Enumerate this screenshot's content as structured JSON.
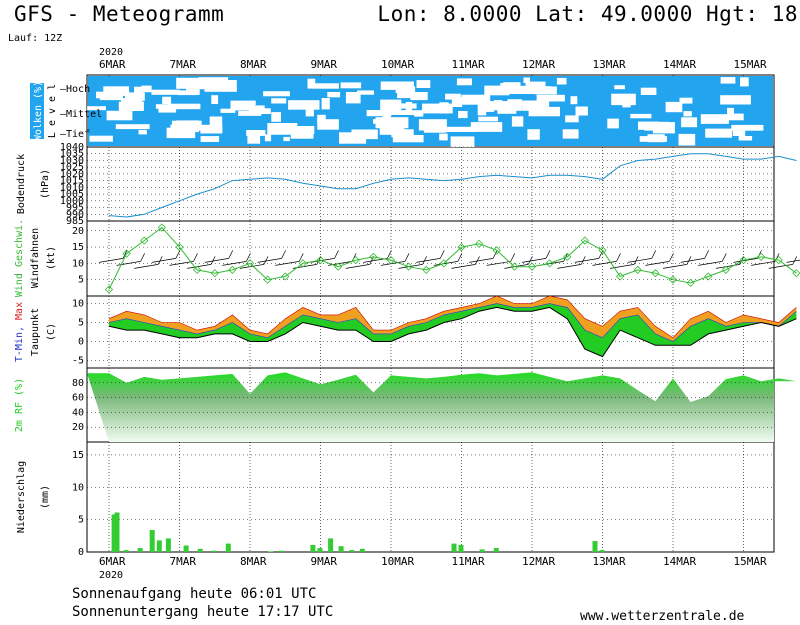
{
  "header": {
    "title": "GFS - Meteogramm",
    "coords": "Lon: 8.0000 Lat: 49.0000 Hgt: 18",
    "run": "Lauf: 12Z"
  },
  "footer": {
    "sunrise": "Sonnenaufgang heute 06:01 UTC",
    "sunset": "Sonnenuntergang heute 17:17 UTC",
    "site": "www.wetterzentrale.de"
  },
  "colors": {
    "cloud": "#22a4ee",
    "pressure": "#1a8fd0",
    "wind": "#33bb33",
    "tmax": "#f0a020",
    "tmin": "#22cc22",
    "rh": "#22cc22",
    "precip": "#33cc33",
    "precip_alt": "#ee4422"
  },
  "chart_data": {
    "year": "2020",
    "dates": [
      "6MAR",
      "7MAR",
      "8MAR",
      "9MAR",
      "10MAR",
      "11MAR",
      "12MAR",
      "13MAR",
      "14MAR",
      "15MAR"
    ],
    "clouds": {
      "type": "heatmap",
      "label_main": "Wolken",
      "label_unit": "(%)",
      "label_level": "Level",
      "levels": [
        "Hoch",
        "Mittel",
        "Tief"
      ]
    },
    "pressure": {
      "type": "line",
      "ylabel1": "Bodendruck",
      "ylabel2": "(hPa)",
      "ylim": [
        985,
        1040
      ],
      "ticks": [
        985,
        990,
        995,
        1000,
        1005,
        1010,
        1015,
        1020,
        1025,
        1030,
        1035,
        1040
      ],
      "x": [
        0,
        0.25,
        0.5,
        0.75,
        1,
        1.25,
        1.5,
        1.75,
        2,
        2.25,
        2.5,
        2.75,
        3,
        3.25,
        3.5,
        3.75,
        4,
        4.25,
        4.5,
        4.75,
        5,
        5.25,
        5.5,
        5.75,
        6,
        6.25,
        6.5,
        6.75,
        7,
        7.25,
        7.5,
        7.75,
        8,
        8.25,
        8.5,
        8.75,
        9,
        9.25,
        9.5,
        9.75
      ],
      "y": [
        989,
        988,
        990,
        995,
        1000,
        1005,
        1009,
        1015,
        1016,
        1017,
        1016,
        1013,
        1011,
        1009,
        1009,
        1013,
        1016,
        1017,
        1016,
        1015,
        1016,
        1018,
        1019,
        1018,
        1017,
        1019,
        1019,
        1018,
        1016,
        1026,
        1030,
        1031,
        1033,
        1035,
        1035,
        1033,
        1031,
        1031,
        1033,
        1030
      ]
    },
    "wind": {
      "type": "line",
      "ylabel1": "Wind Geschwi.",
      "ylabel2": "Windfahnen",
      "ylabel3": "(kt)",
      "ylim": [
        0,
        23
      ],
      "ticks": [
        5,
        10,
        15,
        20
      ],
      "x": [
        0,
        0.25,
        0.5,
        0.75,
        1,
        1.25,
        1.5,
        1.75,
        2,
        2.25,
        2.5,
        2.75,
        3,
        3.25,
        3.5,
        3.75,
        4,
        4.25,
        4.5,
        4.75,
        5,
        5.25,
        5.5,
        5.75,
        6,
        6.25,
        6.5,
        6.75,
        7,
        7.25,
        7.5,
        7.75,
        8,
        8.25,
        8.5,
        8.75,
        9,
        9.25,
        9.5,
        9.75
      ],
      "y": [
        2,
        13,
        17,
        21,
        15,
        8,
        7,
        8,
        10,
        5,
        6,
        10,
        11,
        9,
        11,
        12,
        11,
        9,
        8,
        10,
        15,
        16,
        14,
        9,
        9,
        10,
        12,
        17,
        14,
        6,
        8,
        7,
        5,
        4,
        6,
        8,
        11,
        12,
        11,
        7
      ]
    },
    "temperature": {
      "type": "area",
      "ylabel_min": "T-Min,",
      "ylabel_max": "Max",
      "ylabel2": "Taupunkt",
      "ylabel3": "(C)",
      "ylim": [
        -7,
        12
      ],
      "ticks": [
        -5,
        0,
        5,
        10
      ],
      "x": [
        0,
        0.25,
        0.5,
        0.75,
        1,
        1.25,
        1.5,
        1.75,
        2,
        2.25,
        2.5,
        2.75,
        3,
        3.25,
        3.5,
        3.75,
        4,
        4.25,
        4.5,
        4.75,
        5,
        5.25,
        5.5,
        5.75,
        6,
        6.25,
        6.5,
        6.75,
        7,
        7.25,
        7.5,
        7.75,
        8,
        8.25,
        8.5,
        8.75,
        9,
        9.25,
        9.5,
        9.75
      ],
      "tmax": [
        6,
        8,
        7,
        5,
        5,
        3,
        4,
        7,
        3,
        2,
        6,
        9,
        7,
        7,
        9,
        3,
        3,
        5,
        6,
        8,
        9,
        10,
        12,
        10,
        10,
        12,
        11,
        6,
        4,
        8,
        9,
        4,
        1,
        6,
        8,
        5,
        7,
        6,
        5,
        9
      ],
      "tmin": [
        5,
        6,
        5,
        4,
        3,
        2,
        3,
        5,
        2,
        1,
        4,
        7,
        6,
        5,
        6,
        2,
        2,
        4,
        5,
        7,
        8,
        9,
        10,
        9,
        9,
        10,
        9,
        3,
        1,
        6,
        7,
        2,
        0,
        4,
        6,
        4,
        5,
        5,
        4,
        8
      ],
      "dewpoint": [
        4,
        3,
        3,
        2,
        1,
        1,
        2,
        2,
        0,
        0,
        2,
        5,
        4,
        3,
        3,
        0,
        0,
        2,
        3,
        5,
        6,
        8,
        9,
        8,
        8,
        9,
        6,
        -2,
        -4,
        3,
        1,
        -1,
        -1,
        -1,
        2,
        3,
        4,
        5,
        4,
        6
      ]
    },
    "humidity": {
      "type": "area",
      "ylabel1": "2m RF",
      "ylabel2": "(%)",
      "ylim": [
        0,
        100
      ],
      "ticks": [
        20,
        40,
        60,
        80
      ],
      "x": [
        0,
        0.25,
        0.5,
        0.75,
        1,
        1.25,
        1.5,
        1.75,
        2,
        2.25,
        2.5,
        2.75,
        3,
        3.25,
        3.5,
        3.75,
        4,
        4.25,
        4.5,
        4.75,
        5,
        5.25,
        5.5,
        5.75,
        6,
        6.25,
        6.5,
        6.75,
        7,
        7.25,
        7.5,
        7.75,
        8,
        8.25,
        8.5,
        8.75,
        9,
        9.25,
        9.5,
        9.75
      ],
      "y": [
        93,
        80,
        88,
        84,
        86,
        88,
        90,
        92,
        65,
        90,
        94,
        86,
        78,
        84,
        91,
        67,
        90,
        88,
        86,
        88,
        91,
        93,
        90,
        92,
        94,
        88,
        82,
        86,
        90,
        86,
        70,
        55,
        86,
        54,
        62,
        85,
        90,
        82,
        86,
        82
      ]
    },
    "precip": {
      "type": "bar",
      "ylabel1": "Niederschlag",
      "ylabel2": "(mm)",
      "ylim": [
        0,
        17
      ],
      "ticks": [
        0,
        5,
        10,
        15
      ],
      "x": [
        0.08,
        0.12,
        0.25,
        0.45,
        0.62,
        0.72,
        0.85,
        1.1,
        1.3,
        1.5,
        1.7,
        2.3,
        2.45,
        2.9,
        3.0,
        3.15,
        3.3,
        3.45,
        3.6,
        4.9,
        5.0,
        5.3,
        5.5,
        6.9,
        7.0
      ],
      "values": [
        5.8,
        6.1,
        0.3,
        0.6,
        3.4,
        1.8,
        2.1,
        1.0,
        0.5,
        0.2,
        1.3,
        0.1,
        0.2,
        1.1,
        0.6,
        2.1,
        0.9,
        0.3,
        0.5,
        1.3,
        1.1,
        0.4,
        0.6,
        1.7,
        0.3
      ]
    }
  }
}
